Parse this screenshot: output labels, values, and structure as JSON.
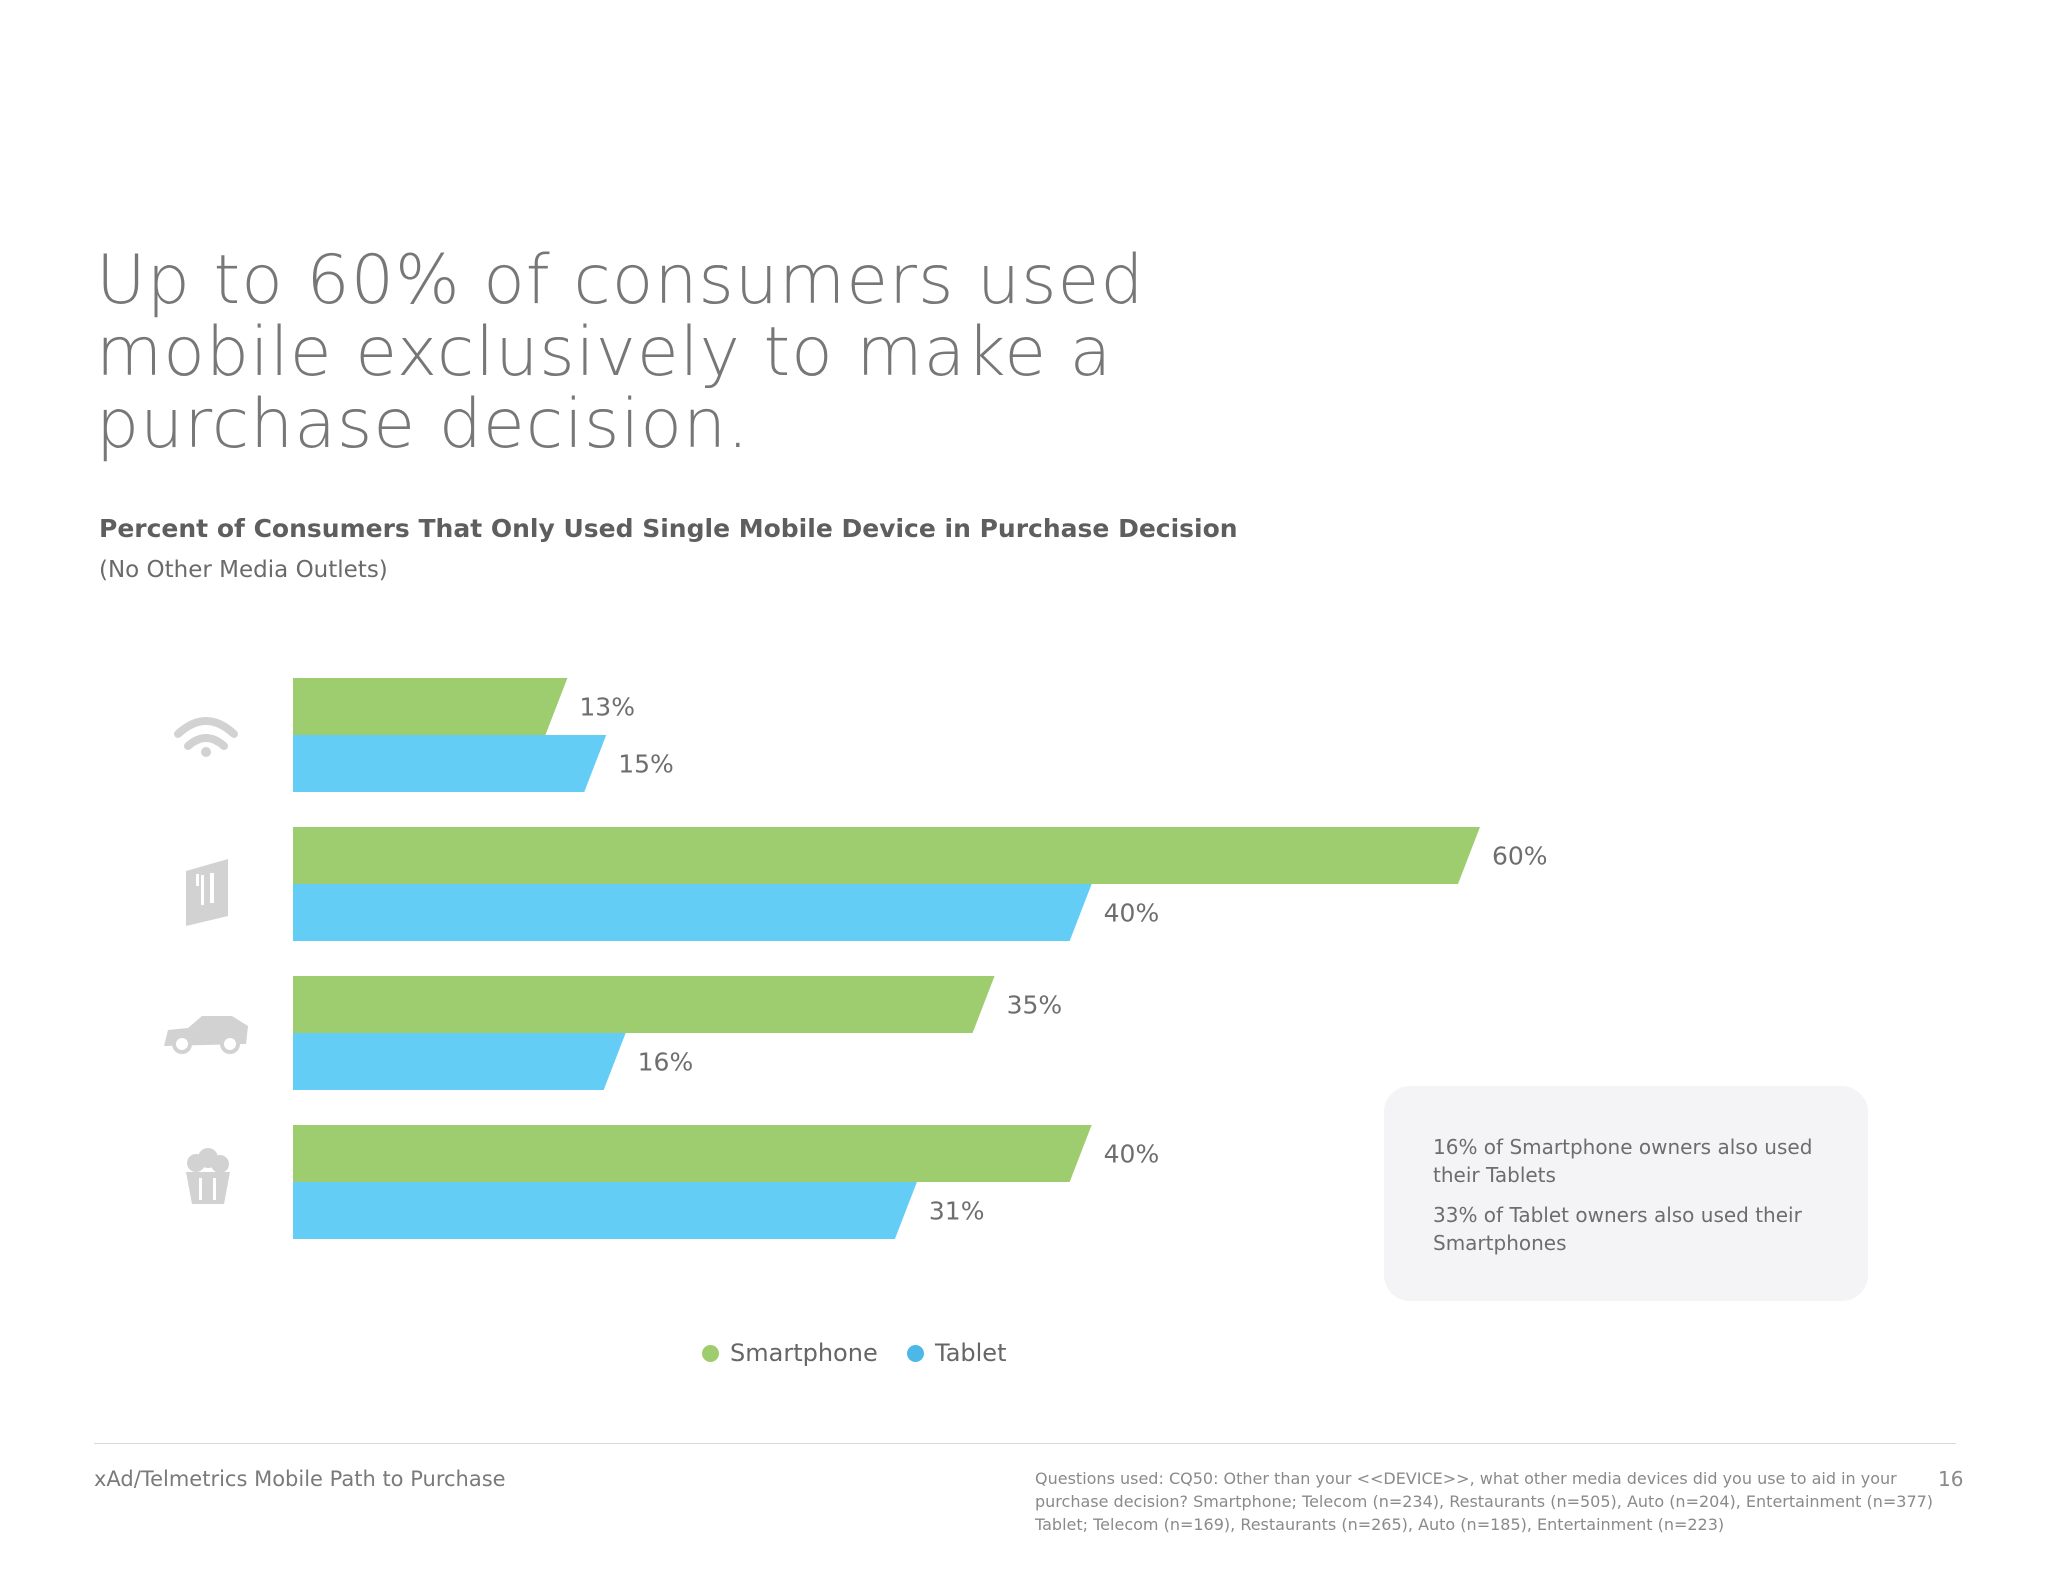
{
  "headline": {
    "line1": "Up to 60% of consumers used",
    "line2": "mobile exclusively to make a",
    "line3": "purchase decision."
  },
  "chart_data": {
    "type": "bar",
    "orientation": "horizontal",
    "title": "Percent of Consumers That Only Used Single Mobile Device in Purchase Decision",
    "subtitle": "(No Other Media Outlets)",
    "categories": [
      "Telecom",
      "Restaurants",
      "Auto",
      "Entertainment"
    ],
    "category_icons": [
      "wifi-icon",
      "restaurant-door-icon",
      "car-icon",
      "popcorn-icon"
    ],
    "series": [
      {
        "name": "Smartphone",
        "color": "#9dcd6e",
        "values": [
          13,
          60,
          35,
          40
        ],
        "labels": [
          "13%",
          "60%",
          "35%",
          "40%"
        ]
      },
      {
        "name": "Tablet",
        "color": "#64cdf5",
        "values": [
          15,
          40,
          16,
          31
        ],
        "labels": [
          "15%",
          "40%",
          "16%",
          "31%"
        ]
      }
    ],
    "xlim": [
      0,
      60
    ],
    "grid": false,
    "legend_position": "bottom"
  },
  "legend": {
    "smartphone": {
      "label": "Smartphone",
      "color": "#9dcd6e"
    },
    "tablet": {
      "label": "Tablet",
      "color": "#4db8e8"
    }
  },
  "callout": {
    "line1": "16% of Smartphone owners also used their Tablets",
    "line2": "33% of Tablet owners also used their Smartphones"
  },
  "footer": {
    "source": "xAd/Telmetrics Mobile Path to Purchase",
    "questions": [
      "Questions used: CQ50: Other than your <<DEVICE>>, what other media devices did you use to aid in your",
      "purchase decision? Smartphone; Telecom (n=234), Restaurants (n=505), Auto (n=204), Entertainment (n=377)",
      "Tablet; Telecom (n=169), Restaurants (n=265), Auto (n=185), Entertainment (n=223)"
    ],
    "page_number": "16"
  }
}
